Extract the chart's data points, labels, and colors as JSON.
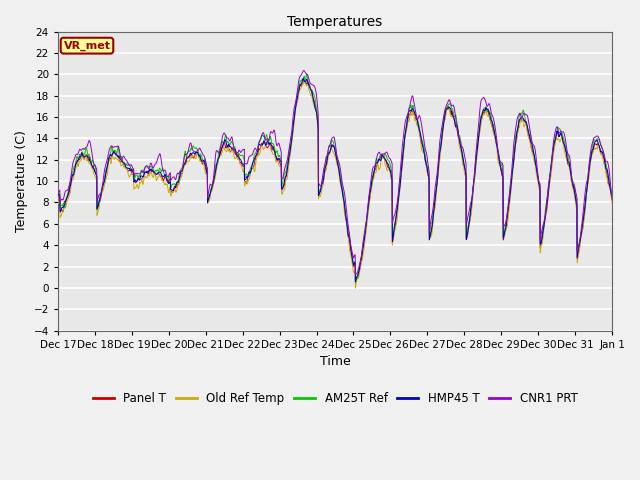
{
  "title": "Temperatures",
  "ylabel": "Temperature (C)",
  "xlabel": "Time",
  "ylim": [
    -4,
    24
  ],
  "yticks": [
    -4,
    -2,
    0,
    2,
    4,
    6,
    8,
    10,
    12,
    14,
    16,
    18,
    20,
    22,
    24
  ],
  "annotation_text": "VR_met",
  "annotation_color": "#990000",
  "annotation_bg": "#ffff99",
  "series_colors": [
    "#cc0000",
    "#ccaa00",
    "#00cc00",
    "#0000cc",
    "#9900cc"
  ],
  "series_names": [
    "Panel T",
    "Old Ref Temp",
    "AM25T Ref",
    "HMP45 T",
    "CNR1 PRT"
  ],
  "background_color": "#e8e8e8",
  "grid_color": "#ffffff",
  "figsize": [
    6.4,
    4.8
  ],
  "dpi": 100,
  "x_tick_labels": [
    "Dec 17",
    "Dec 18",
    "Dec 19",
    "Dec 20",
    "Dec 21",
    "Dec 22",
    "Dec 23",
    "Dec 24",
    "Dec 25",
    "Dec 26",
    "Dec 27",
    "Dec 28",
    "Dec 29",
    "Dec 30",
    "Dec 31",
    "Jan 1"
  ],
  "title_fontsize": 10,
  "tick_fontsize": 7.5,
  "legend_fontsize": 8.5,
  "label_fontsize": 9
}
